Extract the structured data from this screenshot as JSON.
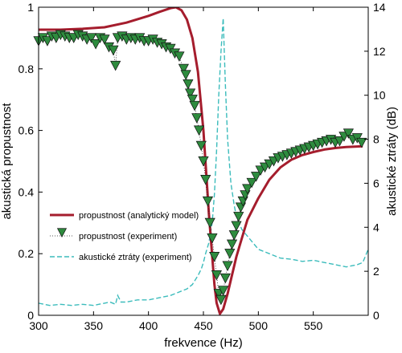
{
  "chart_data": {
    "type": "line",
    "xlabel": "frekvence (Hz)",
    "ylabel_left": "akustická propustnost",
    "ylabel_right": "akustické ztráty (dB)",
    "xlim": [
      300,
      600
    ],
    "ylim_left": [
      0,
      1
    ],
    "ylim_right": [
      0,
      14
    ],
    "x_ticks": [
      "300",
      "350",
      "400",
      "450",
      "500",
      "550"
    ],
    "y_ticks_left": [
      "0",
      "0.2",
      "0.4",
      "0.6",
      "0.8",
      "1"
    ],
    "y_ticks_right": [
      "0",
      "2",
      "4",
      "6",
      "8",
      "10",
      "12",
      "14"
    ],
    "legend_position": "lower-left",
    "grid": false,
    "colors": {
      "model": "#a51d2d",
      "experiment_fill": "#2e8b3e",
      "losses": "#3cbcbc"
    },
    "series": [
      {
        "name": "propustnost (analytický model)",
        "axis": "left",
        "style": "solid",
        "x": [
          300,
          320,
          340,
          360,
          380,
          400,
          410,
          420,
          425,
          430,
          435,
          440,
          445,
          450,
          455,
          460,
          462,
          465,
          468,
          472,
          476,
          480,
          485,
          490,
          500,
          510,
          520,
          530,
          540,
          550,
          560,
          570,
          580,
          590,
          595
        ],
        "y": [
          0.927,
          0.927,
          0.93,
          0.935,
          0.95,
          0.972,
          0.985,
          0.997,
          1.0,
          0.99,
          0.96,
          0.9,
          0.79,
          0.6,
          0.33,
          0.1,
          0.04,
          0.005,
          0.02,
          0.07,
          0.13,
          0.19,
          0.25,
          0.31,
          0.38,
          0.44,
          0.48,
          0.505,
          0.52,
          0.53,
          0.538,
          0.543,
          0.546,
          0.548,
          0.549
        ]
      },
      {
        "name": "propustnost (experiment)",
        "axis": "left",
        "style": "markers",
        "x": [
          300,
          304,
          308,
          312,
          316,
          320,
          324,
          328,
          332,
          336,
          340,
          344,
          348,
          352,
          356,
          360,
          364,
          368,
          370,
          372,
          376,
          380,
          384,
          388,
          392,
          396,
          400,
          404,
          408,
          412,
          416,
          420,
          424,
          428,
          432,
          434,
          436,
          438,
          440,
          442,
          444,
          446,
          448,
          450,
          452,
          454,
          456,
          458,
          460,
          462,
          464,
          466,
          468,
          470,
          472,
          474,
          476,
          478,
          480,
          482,
          484,
          486,
          488,
          490,
          494,
          498,
          502,
          506,
          510,
          514,
          518,
          522,
          526,
          530,
          534,
          538,
          542,
          546,
          550,
          554,
          558,
          562,
          566,
          570,
          574,
          578,
          582,
          586,
          590,
          594
        ],
        "y": [
          0.89,
          0.9,
          0.89,
          0.905,
          0.9,
          0.91,
          0.905,
          0.9,
          0.9,
          0.91,
          0.905,
          0.895,
          0.9,
          0.88,
          0.9,
          0.895,
          0.87,
          0.86,
          0.81,
          0.9,
          0.905,
          0.895,
          0.9,
          0.895,
          0.9,
          0.89,
          0.89,
          0.895,
          0.885,
          0.88,
          0.87,
          0.865,
          0.85,
          0.84,
          0.8,
          0.78,
          0.75,
          0.72,
          0.7,
          0.68,
          0.64,
          0.6,
          0.55,
          0.5,
          0.44,
          0.37,
          0.3,
          0.25,
          0.19,
          0.13,
          0.07,
          0.05,
          0.08,
          0.12,
          0.16,
          0.2,
          0.23,
          0.26,
          0.29,
          0.32,
          0.35,
          0.37,
          0.39,
          0.41,
          0.43,
          0.45,
          0.47,
          0.48,
          0.49,
          0.5,
          0.51,
          0.515,
          0.52,
          0.525,
          0.53,
          0.535,
          0.54,
          0.545,
          0.55,
          0.555,
          0.56,
          0.565,
          0.57,
          0.56,
          0.565,
          0.58,
          0.59,
          0.57,
          0.575,
          0.56
        ]
      },
      {
        "name": "akustické ztráty (experiment)",
        "axis": "right",
        "style": "dashed",
        "x": [
          300,
          310,
          320,
          330,
          340,
          350,
          360,
          365,
          370,
          372,
          375,
          380,
          390,
          400,
          410,
          420,
          425,
          430,
          435,
          440,
          445,
          448,
          450,
          452,
          455,
          458,
          460,
          462,
          464,
          466,
          468,
          470,
          472,
          475,
          478,
          480,
          485,
          490,
          495,
          500,
          510,
          520,
          530,
          540,
          550,
          560,
          570,
          580,
          590,
          595,
          600
        ],
        "y": [
          0.55,
          0.45,
          0.5,
          0.45,
          0.5,
          0.45,
          0.55,
          0.6,
          0.5,
          0.9,
          0.6,
          0.6,
          0.7,
          0.7,
          0.8,
          0.9,
          1.0,
          1.1,
          1.2,
          1.4,
          1.8,
          2.1,
          2.4,
          2.8,
          3.3,
          4.2,
          5.5,
          7.5,
          10.0,
          12.0,
          13.5,
          10.5,
          8.0,
          6.0,
          5.0,
          4.5,
          3.9,
          3.6,
          3.3,
          3.0,
          2.8,
          2.6,
          2.55,
          2.45,
          2.5,
          2.4,
          2.3,
          2.2,
          2.3,
          2.4,
          3.0
        ]
      }
    ]
  }
}
